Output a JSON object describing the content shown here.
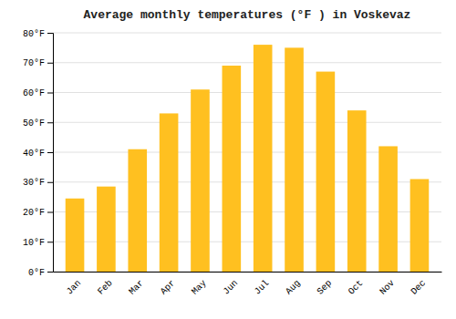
{
  "chart_data": {
    "type": "bar",
    "title": "Average monthly temperatures (°F ) in Voskevaz",
    "categories": [
      "Jan",
      "Feb",
      "Mar",
      "Apr",
      "May",
      "Jun",
      "Jul",
      "Aug",
      "Sep",
      "Oct",
      "Nov",
      "Dec"
    ],
    "values": [
      24.5,
      28.5,
      41.0,
      53.0,
      61.0,
      69.0,
      76.0,
      75.0,
      67.0,
      54.0,
      42.0,
      31.0
    ],
    "color": "#FFC020",
    "ylim": [
      0,
      80
    ],
    "yticks": [
      {
        "value": 0,
        "label": "0°F"
      },
      {
        "value": 10,
        "label": "10°F"
      },
      {
        "value": 20,
        "label": "20°F"
      },
      {
        "value": 30,
        "label": "30°F"
      },
      {
        "value": 40,
        "label": "40°F"
      },
      {
        "value": 50,
        "label": "50°F"
      },
      {
        "value": 60,
        "label": "60°F"
      },
      {
        "value": 70,
        "label": "70°F"
      },
      {
        "value": 80,
        "label": "80°F"
      }
    ],
    "grid": true
  }
}
